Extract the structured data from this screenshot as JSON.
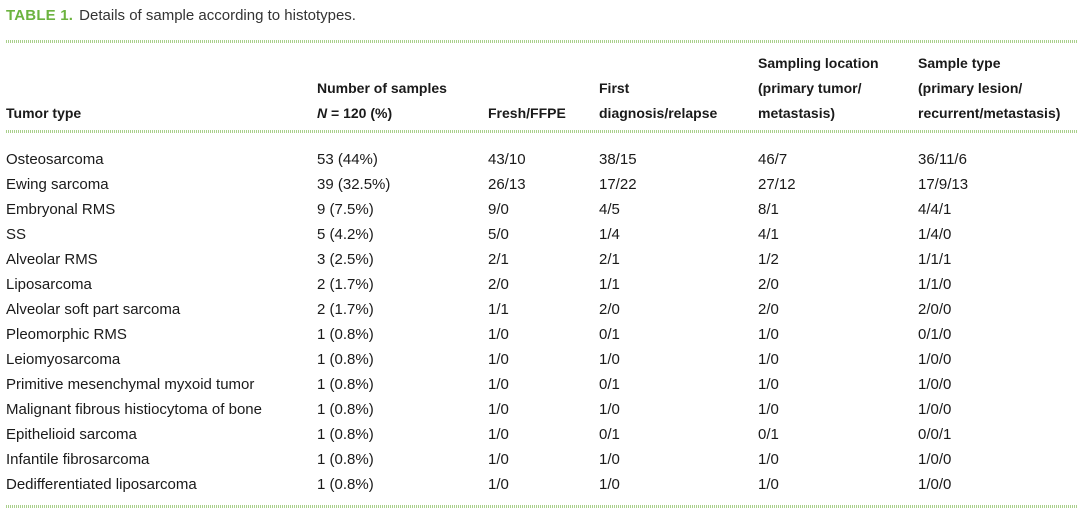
{
  "caption": {
    "label": "TABLE 1.",
    "text": "Details of sample according to histotypes."
  },
  "columns": [
    {
      "lines": [
        "",
        "",
        "Tumor type"
      ]
    },
    {
      "lines": [
        "",
        "Number of samples"
      ],
      "n_label": "N",
      "n_rest": " = 120 (%)"
    },
    {
      "lines": [
        "",
        "",
        "Fresh/FFPE"
      ]
    },
    {
      "lines": [
        "",
        "First",
        "diagnosis/relapse"
      ]
    },
    {
      "lines": [
        "Sampling location",
        "(primary tumor/",
        "metastasis)"
      ]
    },
    {
      "lines": [
        "Sample type",
        "(primary lesion/",
        "recurrent/metastasis)"
      ]
    }
  ],
  "rows": [
    [
      "Osteosarcoma",
      "53 (44%)",
      "43/10",
      "38/15",
      "46/7",
      "36/11/6"
    ],
    [
      "Ewing sarcoma",
      "39 (32.5%)",
      "26/13",
      "17/22",
      "27/12",
      "17/9/13"
    ],
    [
      "Embryonal RMS",
      "9 (7.5%)",
      "9/0",
      "4/5",
      "8/1",
      "4/4/1"
    ],
    [
      "SS",
      "5 (4.2%)",
      "5/0",
      "1/4",
      "4/1",
      "1/4/0"
    ],
    [
      "Alveolar RMS",
      "3 (2.5%)",
      "2/1",
      "2/1",
      "1/2",
      "1/1/1"
    ],
    [
      "Liposarcoma",
      "2 (1.7%)",
      "2/0",
      "1/1",
      "2/0",
      "1/1/0"
    ],
    [
      "Alveolar soft part sarcoma",
      "2 (1.7%)",
      "1/1",
      "2/0",
      "2/0",
      "2/0/0"
    ],
    [
      "Pleomorphic RMS",
      "1 (0.8%)",
      "1/0",
      "0/1",
      "1/0",
      "0/1/0"
    ],
    [
      "Leiomyosarcoma",
      "1 (0.8%)",
      "1/0",
      "1/0",
      "1/0",
      "1/0/0"
    ],
    [
      "Primitive mesenchymal myxoid tumor",
      "1 (0.8%)",
      "1/0",
      "0/1",
      "1/0",
      "1/0/0"
    ],
    [
      "Malignant fibrous histiocytoma of bone",
      "1 (0.8%)",
      "1/0",
      "1/0",
      "1/0",
      "1/0/0"
    ],
    [
      "Epithelioid sarcoma",
      "1 (0.8%)",
      "1/0",
      "0/1",
      "0/1",
      "0/0/1"
    ],
    [
      "Infantile fibrosarcoma",
      "1 (0.8%)",
      "1/0",
      "1/0",
      "1/0",
      "1/0/0"
    ],
    [
      "Dedifferentiated liposarcoma",
      "1 (0.8%)",
      "1/0",
      "1/0",
      "1/0",
      "1/0/0"
    ]
  ]
}
